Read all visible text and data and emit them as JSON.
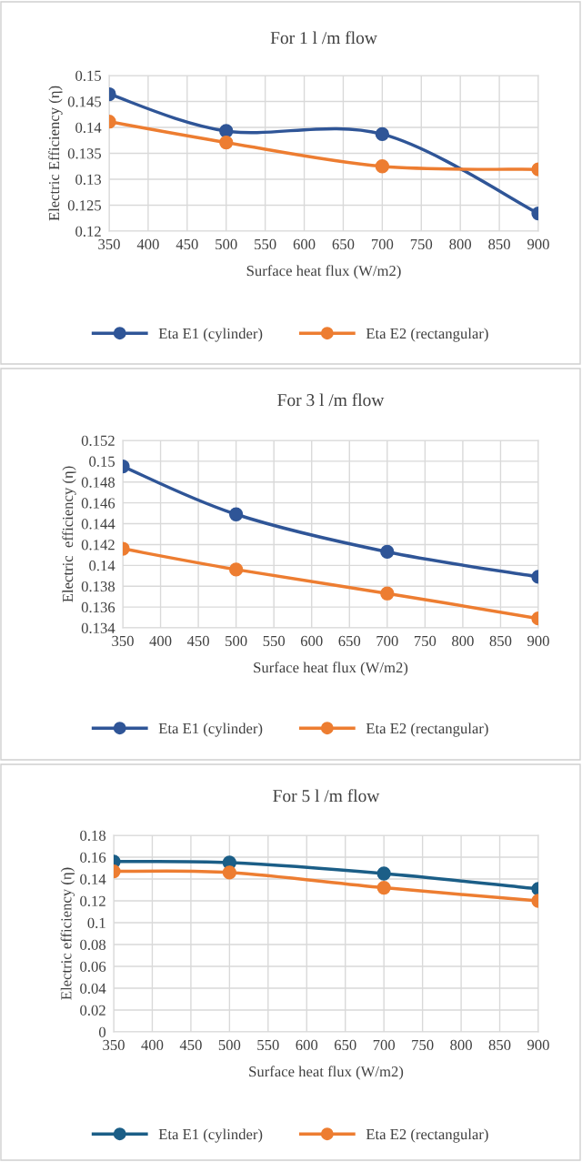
{
  "chart_data": [
    {
      "type": "line",
      "title": "For 1 l /m flow",
      "xlabel": "Surface heat flux (W/m2)",
      "ylabel": "Electric Efficiency (η)",
      "x": [
        350,
        500,
        700,
        900
      ],
      "xlim": [
        350,
        900
      ],
      "xticks": [
        350,
        400,
        450,
        500,
        550,
        600,
        650,
        700,
        750,
        800,
        850,
        900
      ],
      "ylim": [
        0.12,
        0.15
      ],
      "yticks": [
        0.12,
        0.125,
        0.13,
        0.135,
        0.14,
        0.145,
        0.15
      ],
      "grid": true,
      "legend": "bottom",
      "marker": "circle",
      "line_style": "solid",
      "series": [
        {
          "name": "Eta E1 (cylinder)",
          "color": "#2f5597",
          "values": [
            0.1464,
            0.1393,
            0.1387,
            0.1234
          ]
        },
        {
          "name": "Eta E2 (rectangular)",
          "color": "#ed7d31",
          "values": [
            0.1411,
            0.1371,
            0.1325,
            0.1319
          ]
        }
      ]
    },
    {
      "type": "line",
      "title": "For 3 l /m flow",
      "xlabel": "Surface heat flux (W/m2)",
      "ylabel": "Electric  efficiency (η)",
      "x": [
        350,
        500,
        700,
        900
      ],
      "xlim": [
        350,
        900
      ],
      "xticks": [
        350,
        400,
        450,
        500,
        550,
        600,
        650,
        700,
        750,
        800,
        850,
        900
      ],
      "ylim": [
        0.134,
        0.152
      ],
      "yticks": [
        0.134,
        0.136,
        0.138,
        {
          "value": 0.14,
          "label": "0.14"
        },
        0.142,
        0.144,
        0.146,
        0.148,
        {
          "value": 0.15,
          "label": "0.15"
        },
        0.152
      ],
      "grid": true,
      "legend": "bottom",
      "marker": "circle",
      "line_style": "solid",
      "series": [
        {
          "name": "Eta E1 (cylinder)",
          "color": "#2f5597",
          "values": [
            0.1495,
            0.1449,
            0.1413,
            0.1389
          ]
        },
        {
          "name": "Eta E2 (rectangular)",
          "color": "#ed7d31",
          "values": [
            0.1416,
            0.1396,
            0.1373,
            0.1349
          ]
        }
      ]
    },
    {
      "type": "line",
      "title": "For 5 l /m flow",
      "xlabel": "Surface heat flux (W/m2)",
      "ylabel": "Electric efficiency (η)",
      "x": [
        350,
        500,
        700,
        900
      ],
      "xlim": [
        350,
        900
      ],
      "xticks": [
        350,
        400,
        450,
        500,
        550,
        600,
        650,
        700,
        750,
        800,
        850,
        900
      ],
      "ylim": [
        0,
        0.18
      ],
      "yticks": [
        0,
        0.02,
        0.04,
        0.06,
        0.08,
        {
          "value": 0.1,
          "label": "0.1"
        },
        0.12,
        0.14,
        0.16,
        0.18
      ],
      "grid": true,
      "legend": "bottom",
      "marker": "circle",
      "line_style": "solid",
      "series": [
        {
          "name": "Eta E1 (cylinder)",
          "color": "#1b5e87",
          "values": [
            0.156,
            0.155,
            0.145,
            0.131
          ]
        },
        {
          "name": "Eta E2 (rectangular)",
          "color": "#ed7d31",
          "values": [
            0.147,
            0.146,
            0.132,
            0.12
          ]
        }
      ]
    }
  ]
}
